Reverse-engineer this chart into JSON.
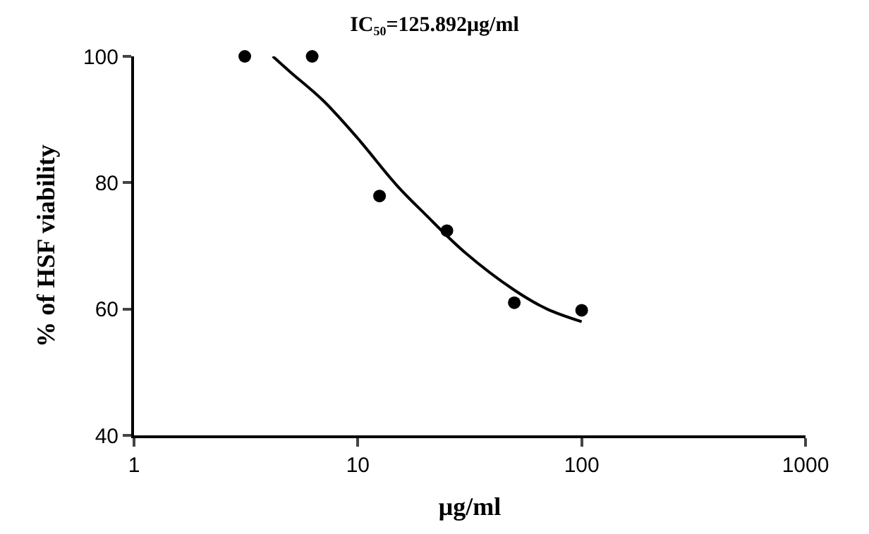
{
  "chart_data": {
    "type": "scatter",
    "title": "IC₅₀=125.892μg/ml",
    "xlabel": "μg/ml",
    "ylabel": "% of HSF viability",
    "log": "x",
    "xlim": [
      1,
      1000
    ],
    "xticks": [
      1,
      10,
      100,
      1000
    ],
    "ylim": [
      40,
      100
    ],
    "yticks": [
      40,
      60,
      80,
      100
    ],
    "marker": "circle",
    "series": [
      {
        "color": "#000000",
        "x": [
          3.125,
          6.25,
          12.5,
          25,
          50,
          100
        ],
        "values": [
          100,
          100,
          77.9,
          72.4,
          61,
          59.8
        ]
      },
      {
        "type": "line",
        "color": "#000000",
        "line_style": "solid",
        "marker": "none",
        "x": [
          4.17,
          5,
          7,
          10,
          15,
          20,
          30,
          50,
          70,
          100
        ],
        "values": [
          100,
          97.5,
          93,
          87,
          79.5,
          75,
          69,
          63,
          60,
          58
        ]
      }
    ]
  }
}
